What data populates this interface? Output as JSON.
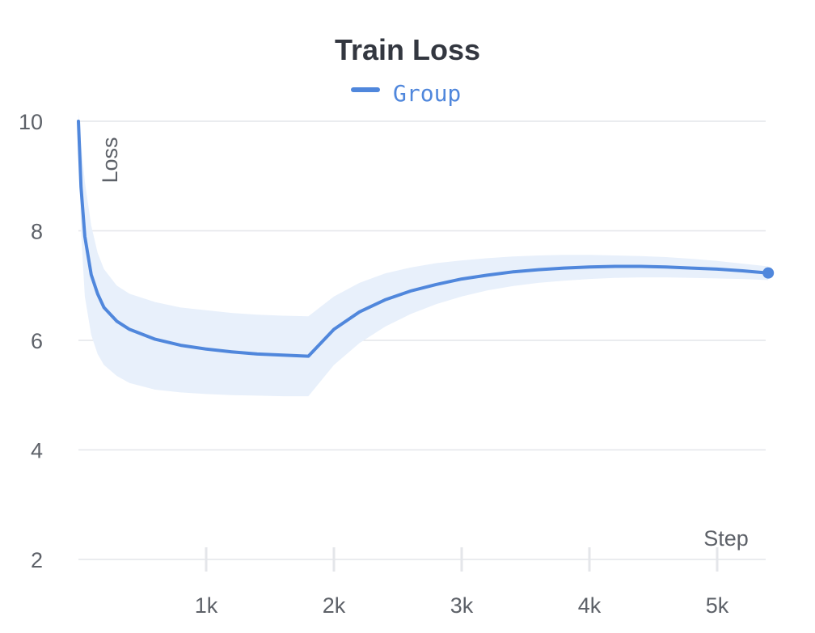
{
  "chart_data": {
    "type": "line",
    "title": "Train Loss",
    "xlabel": "Step",
    "ylabel": "Loss",
    "xlim": [
      0,
      5400
    ],
    "ylim": [
      2,
      10
    ],
    "x_ticks": [
      {
        "value": 1000,
        "label": "1k"
      },
      {
        "value": 2000,
        "label": "2k"
      },
      {
        "value": 3000,
        "label": "3k"
      },
      {
        "value": 4000,
        "label": "4k"
      },
      {
        "value": 5000,
        "label": "5k"
      }
    ],
    "y_ticks": [
      {
        "value": 10,
        "label": "10"
      },
      {
        "value": 8,
        "label": "8"
      },
      {
        "value": 6,
        "label": "6"
      },
      {
        "value": 4,
        "label": "4"
      },
      {
        "value": 2,
        "label": "2"
      }
    ],
    "grid": true,
    "legend_position": "top-center",
    "series": [
      {
        "name": "Group",
        "color": "#5087dc",
        "band_color": "#e8f0fb",
        "x": [
          0,
          20,
          50,
          100,
          150,
          200,
          300,
          400,
          600,
          800,
          1000,
          1200,
          1400,
          1600,
          1800,
          2000,
          2200,
          2400,
          2600,
          2800,
          3000,
          3200,
          3400,
          3600,
          3800,
          4000,
          4200,
          4400,
          4600,
          4800,
          5000,
          5200,
          5400
        ],
        "values": [
          10.0,
          8.8,
          7.9,
          7.2,
          6.85,
          6.6,
          6.35,
          6.2,
          6.02,
          5.91,
          5.84,
          5.79,
          5.75,
          5.73,
          5.71,
          6.2,
          6.52,
          6.74,
          6.9,
          7.02,
          7.12,
          7.19,
          7.25,
          7.29,
          7.32,
          7.34,
          7.35,
          7.35,
          7.34,
          7.32,
          7.3,
          7.27,
          7.23
        ],
        "upper": [
          10.15,
          9.6,
          8.9,
          8.1,
          7.6,
          7.3,
          7.0,
          6.85,
          6.7,
          6.6,
          6.55,
          6.5,
          6.47,
          6.45,
          6.44,
          6.8,
          7.05,
          7.22,
          7.33,
          7.41,
          7.46,
          7.5,
          7.53,
          7.55,
          7.56,
          7.56,
          7.55,
          7.54,
          7.52,
          7.49,
          7.45,
          7.4,
          7.35
        ],
        "lower": [
          9.85,
          8.0,
          6.8,
          6.1,
          5.75,
          5.55,
          5.35,
          5.22,
          5.1,
          5.05,
          5.02,
          5.0,
          4.99,
          4.98,
          4.98,
          5.55,
          5.95,
          6.25,
          6.48,
          6.66,
          6.8,
          6.91,
          6.99,
          7.05,
          7.09,
          7.12,
          7.14,
          7.15,
          7.15,
          7.14,
          7.13,
          7.12,
          7.1
        ]
      }
    ]
  }
}
